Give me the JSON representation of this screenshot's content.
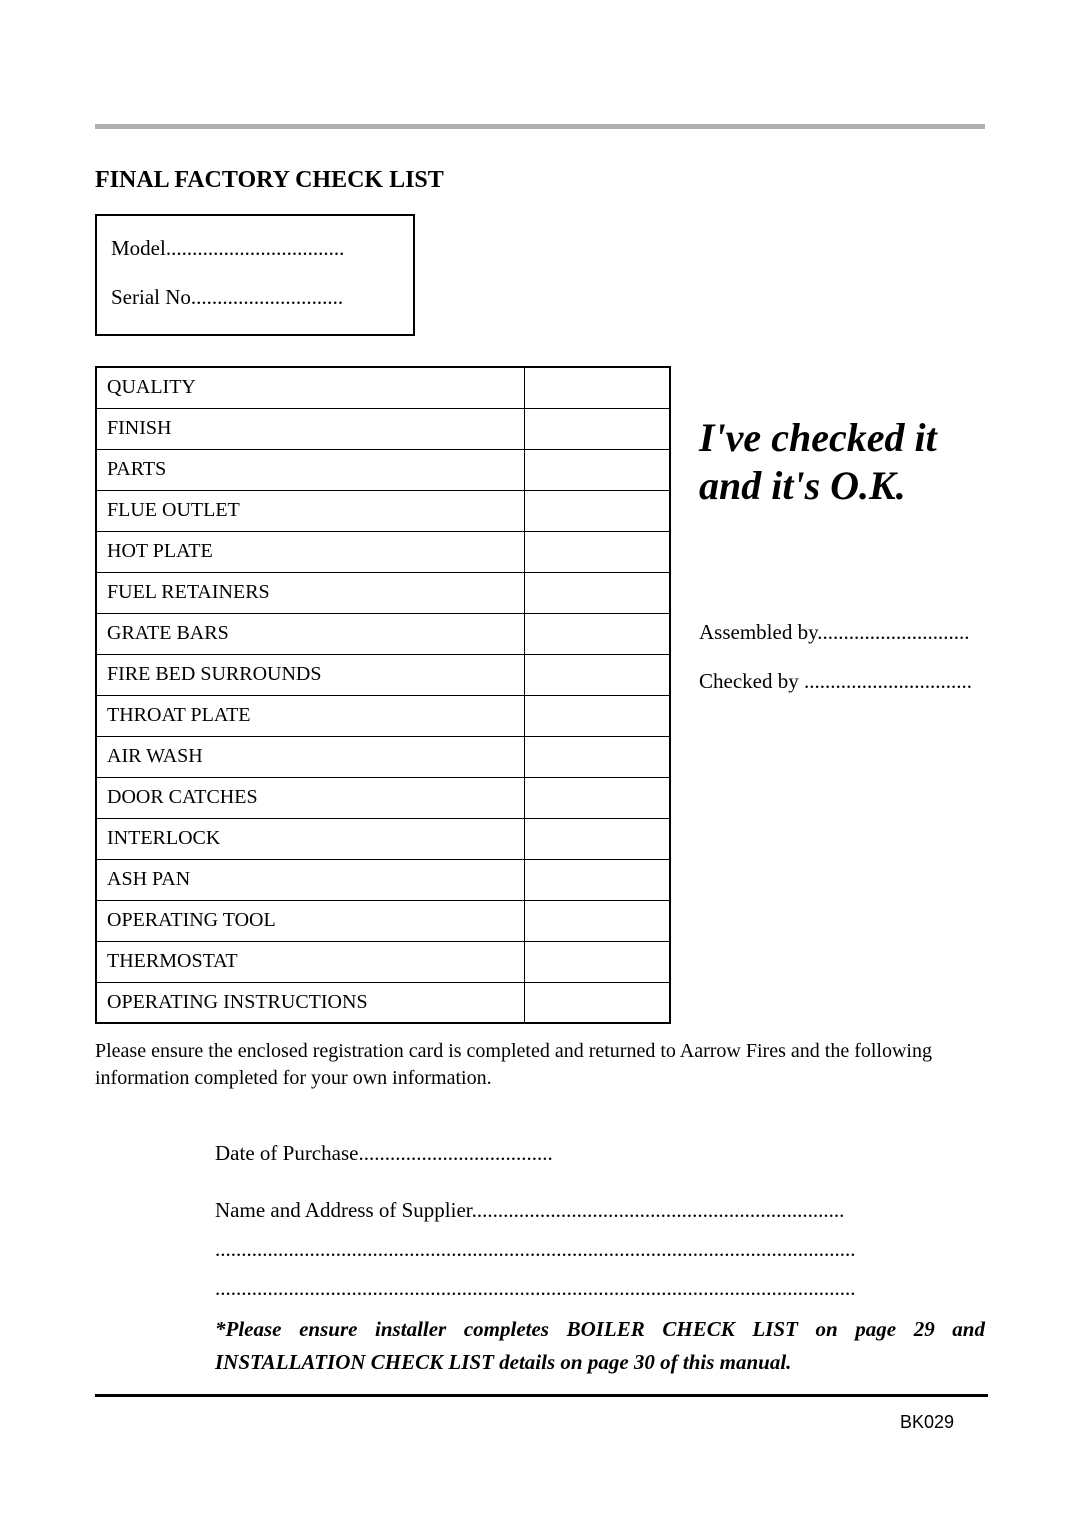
{
  "title": "FINAL FACTORY CHECK LIST",
  "model_box": {
    "model_label": "Model..................................",
    "serial_label": "Serial No............................."
  },
  "checklist": {
    "items": [
      "QUALITY",
      "FINISH",
      "PARTS",
      "FLUE OUTLET",
      "HOT PLATE",
      "FUEL RETAINERS",
      "GRATE BARS",
      "FIRE BED SURROUNDS",
      "THROAT PLATE",
      "AIR WASH",
      "DOOR CATCHES",
      "INTERLOCK",
      "ASH PAN",
      "OPERATING TOOL",
      "THERMOSTAT",
      "OPERATING INSTRUCTIONS"
    ]
  },
  "side": {
    "ok_line1": "I've checked it",
    "ok_line2": "and it's O.K.",
    "assembled_by": "Assembled by.............................",
    "checked_by": "Checked by ................................"
  },
  "note": "Please ensure the enclosed registration card is completed and returned to Aarrow Fires and the following information completed for your own information.",
  "purchase": {
    "date_label": "Date of Purchase.....................................",
    "supplier_label": "Name and Address of Supplier.......................................................................",
    "blank1": "..........................................................................................................................",
    "blank2": ".........................................................................................................................."
  },
  "installer_note": "*Please ensure installer completes BOILER CHECK LIST on page 29 and INSTALLATION CHECK LIST details on page 30 of this manual.",
  "doc_code": "BK029",
  "colors": {
    "top_rule": "#b0b0b0",
    "text": "#000000",
    "border": "#000000",
    "background": "#ffffff"
  }
}
